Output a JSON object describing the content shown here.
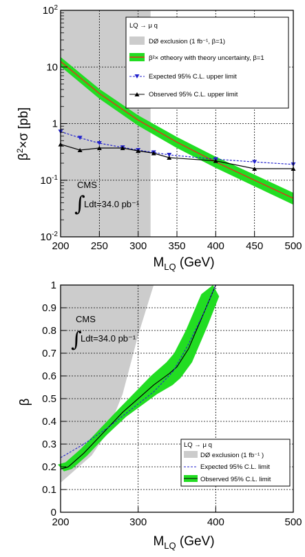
{
  "chart_data": [
    {
      "type": "line",
      "xlabel": "M",
      "xlabel_sub": "LQ",
      "xlabel_unit": "(GeV)",
      "ylabel_pre": "β",
      "ylabel_sup": "2",
      "ylabel_post": "×σ [pb]",
      "xlim": [
        200,
        500
      ],
      "ylim": [
        0.01,
        100
      ],
      "yscale": "log",
      "grid": true,
      "legend_position": "top-right",
      "xticks": [
        "200",
        "250",
        "300",
        "350",
        "400",
        "450",
        "500"
      ],
      "yticks": [
        {
          "value": 0.01,
          "base": "10",
          "exp": "-2"
        },
        {
          "value": 0.1,
          "base": "10",
          "exp": "-1"
        },
        {
          "value": 1,
          "base": "1",
          "exp": ""
        },
        {
          "value": 10,
          "base": "10",
          "exp": ""
        },
        {
          "value": 100,
          "base": "10",
          "exp": "2"
        }
      ],
      "legend_title": "LQ → μ q",
      "legend": {
        "d0": "DØ exclusion (1 fb⁻¹, β=1)",
        "theory": "β²× σtheory with theory uncertainty, β=1",
        "expected": "Expected 95% C.L. upper limit",
        "observed": "Observed 95% C.L. upper limit"
      },
      "annotation": {
        "experiment": "CMS",
        "lumi": "Ldt=34.0 pb⁻¹"
      },
      "d0_exclusion": {
        "x_max": 316,
        "color": "#cccccc"
      },
      "theory": {
        "x": [
          200,
          250,
          300,
          350,
          400,
          450,
          500
        ],
        "y": [
          12.5,
          3.4,
          1.15,
          0.47,
          0.21,
          0.1,
          0.048
        ],
        "band_y_low": [
          10.2,
          2.75,
          0.92,
          0.37,
          0.165,
          0.078,
          0.037
        ],
        "band_y_high": [
          15.0,
          4.1,
          1.4,
          0.58,
          0.26,
          0.125,
          0.06
        ],
        "line_color": "#e0301e",
        "band_color": "#22dd22"
      },
      "expected": {
        "x": [
          200,
          225,
          250,
          280,
          300,
          320,
          340,
          400,
          450,
          500
        ],
        "y": [
          0.72,
          0.56,
          0.45,
          0.38,
          0.34,
          0.31,
          0.28,
          0.235,
          0.21,
          0.19
        ],
        "color": "#2222cc"
      },
      "observed": {
        "x": [
          200,
          225,
          250,
          280,
          300,
          320,
          340,
          400,
          450,
          500
        ],
        "y": [
          0.43,
          0.34,
          0.37,
          0.37,
          0.33,
          0.3,
          0.25,
          0.22,
          0.16,
          0.16
        ],
        "color": "#000000"
      }
    },
    {
      "type": "line",
      "xlabel": "M",
      "xlabel_sub": "LQ",
      "xlabel_unit": "(GeV)",
      "ylabel": "β",
      "xlim": [
        200,
        500
      ],
      "ylim": [
        0,
        1
      ],
      "grid": true,
      "legend_position": "bottom-right",
      "xticks": [
        "200",
        "300",
        "400",
        "500"
      ],
      "yticks": [
        "0",
        "0.1",
        "0.2",
        "0.3",
        "0.4",
        "0.5",
        "0.6",
        "0.7",
        "0.8",
        "0.9",
        "1"
      ],
      "legend_title": "LQ → μ q",
      "legend": {
        "d0": "DØ exclusion (1 fb⁻¹ )",
        "expected": "Expected 95% C.L. limit",
        "observed": "Observed 95% C.L. limit"
      },
      "annotation": {
        "experiment": "CMS",
        "lumi": "Ldt=34.0 pb⁻¹"
      },
      "d0_exclusion": {
        "x": [
          200,
          240,
          260,
          280,
          300,
          320
        ],
        "beta": [
          0.13,
          0.25,
          0.35,
          0.52,
          0.78,
          1.0
        ],
        "color": "#cccccc"
      },
      "expected": {
        "x": [
          200,
          230,
          260,
          290,
          320,
          345,
          365,
          385,
          400
        ],
        "beta": [
          0.24,
          0.3,
          0.37,
          0.45,
          0.53,
          0.62,
          0.74,
          0.88,
          1.0
        ],
        "color": "#2222cc"
      },
      "observed": {
        "x": [
          200,
          210,
          230,
          255,
          280,
          300,
          320,
          340,
          350,
          365,
          385,
          400
        ],
        "beta": [
          0.19,
          0.2,
          0.26,
          0.35,
          0.44,
          0.5,
          0.56,
          0.61,
          0.64,
          0.72,
          0.88,
          1.0
        ],
        "band_low": [
          0.18,
          0.19,
          0.25,
          0.34,
          0.42,
          0.47,
          0.52,
          0.56,
          0.59,
          0.66,
          0.82,
          0.95
        ],
        "band_high": [
          0.21,
          0.22,
          0.28,
          0.37,
          0.46,
          0.53,
          0.6,
          0.66,
          0.7,
          0.8,
          0.96,
          1.0
        ],
        "color": "#000000",
        "band_color": "#22dd22"
      }
    }
  ]
}
